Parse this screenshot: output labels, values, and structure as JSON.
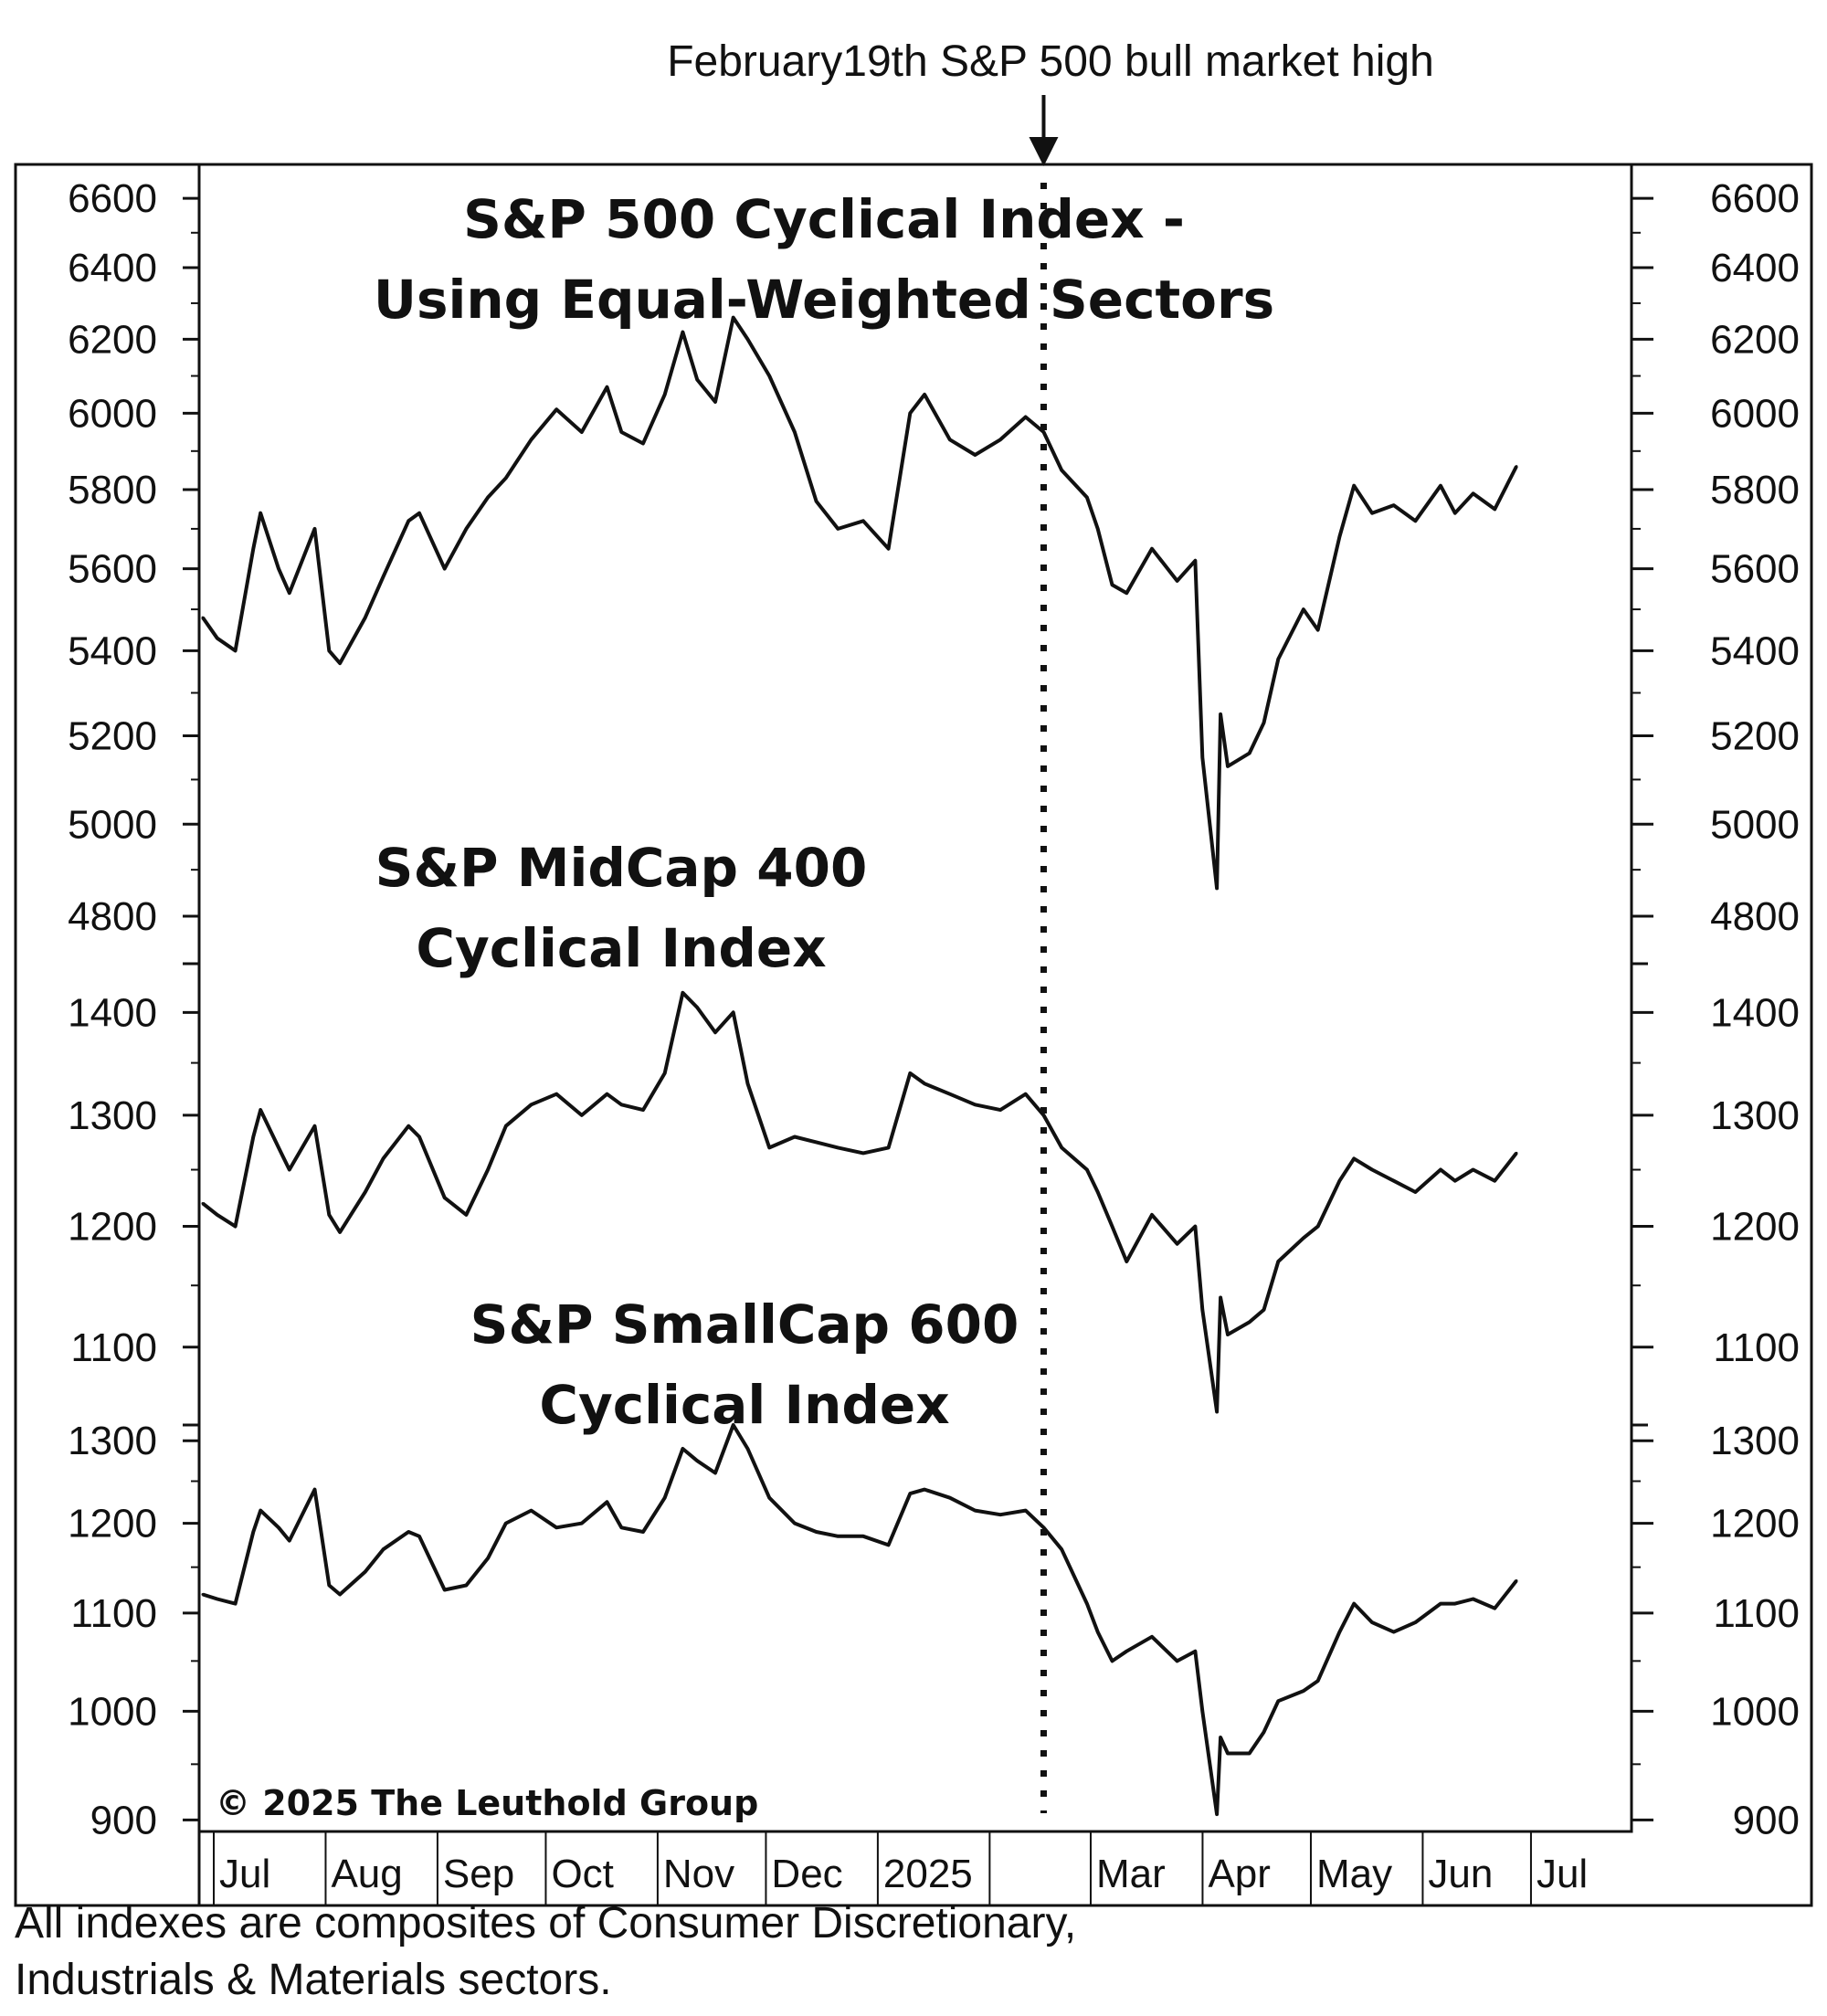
{
  "annotation": "February19th S&P 500 bull market high",
  "copyright": "© 2025 The Leuthold Group",
  "footnote": [
    "All indexes are composites of Consumer Discretionary,",
    "Industrials & Materials sectors."
  ],
  "month_labels": [
    "Jul",
    "Aug",
    "Sep",
    "Oct",
    "Nov",
    "Dec",
    "2025",
    "",
    "Mar",
    "Apr",
    "May",
    "Jun",
    "Jul"
  ],
  "chart_data": [
    {
      "type": "line",
      "title": "S&P 500 Cyclical Index - Using Equal-Weighted Sectors",
      "title_lines": [
        "S&P 500 Cyclical Index -",
        "Using Equal-Weighted Sectors"
      ],
      "yticks": [
        4800,
        5000,
        5200,
        5400,
        5600,
        5800,
        6000,
        6200,
        6400,
        6600
      ],
      "ylim": [
        4700,
        6700
      ],
      "scale": "log",
      "x_start": "2024-07-01",
      "x_end": "2025-06-30",
      "marker_date": "2025-02-19",
      "series": [
        {
          "x": [
            "2024-07-01",
            "2024-07-05",
            "2024-07-10",
            "2024-07-15",
            "2024-07-17",
            "2024-07-22",
            "2024-07-25",
            "2024-08-01",
            "2024-08-05",
            "2024-08-08",
            "2024-08-15",
            "2024-08-20",
            "2024-08-27",
            "2024-08-30",
            "2024-09-06",
            "2024-09-12",
            "2024-09-18",
            "2024-09-23",
            "2024-09-30",
            "2024-10-07",
            "2024-10-14",
            "2024-10-21",
            "2024-10-25",
            "2024-10-31",
            "2024-11-06",
            "2024-11-11",
            "2024-11-15",
            "2024-11-20",
            "2024-11-25",
            "2024-11-29",
            "2024-12-05",
            "2024-12-12",
            "2024-12-18",
            "2024-12-24",
            "2024-12-31",
            "2025-01-07",
            "2025-01-13",
            "2025-01-17",
            "2025-01-24",
            "2025-01-31",
            "2025-02-07",
            "2025-02-14",
            "2025-02-19",
            "2025-02-24",
            "2025-03-03",
            "2025-03-06",
            "2025-03-10",
            "2025-03-14",
            "2025-03-21",
            "2025-03-28",
            "2025-04-02",
            "2025-04-04",
            "2025-04-08",
            "2025-04-09",
            "2025-04-11",
            "2025-04-17",
            "2025-04-21",
            "2025-04-25",
            "2025-05-02",
            "2025-05-06",
            "2025-05-12",
            "2025-05-16",
            "2025-05-21",
            "2025-05-27",
            "2025-06-02",
            "2025-06-09",
            "2025-06-13",
            "2025-06-18",
            "2025-06-24",
            "2025-06-30"
          ],
          "y": [
            5480,
            5430,
            5400,
            5650,
            5740,
            5600,
            5540,
            5700,
            5400,
            5370,
            5480,
            5580,
            5720,
            5740,
            5600,
            5700,
            5780,
            5830,
            5930,
            6010,
            5950,
            6070,
            5950,
            5920,
            6050,
            6220,
            6090,
            6030,
            6260,
            6200,
            6100,
            5950,
            5770,
            5700,
            5720,
            5650,
            6000,
            6050,
            5930,
            5890,
            5930,
            5990,
            5950,
            5850,
            5780,
            5700,
            5560,
            5540,
            5650,
            5570,
            5620,
            5150,
            4860,
            5250,
            5130,
            5160,
            5230,
            5380,
            5500,
            5450,
            5680,
            5810,
            5740,
            5760,
            5720,
            5810,
            5740,
            5790,
            5750,
            5860
          ]
        }
      ]
    },
    {
      "type": "line",
      "title": "S&P MidCap 400 Cyclical Index",
      "title_lines": [
        "S&P MidCap 400",
        "Cyclical Index"
      ],
      "yticks": [
        1100,
        1200,
        1300,
        1400
      ],
      "ylim": [
        1040,
        1450
      ],
      "scale": "log",
      "x_start": "2024-07-01",
      "x_end": "2025-06-30",
      "marker_date": "2025-02-19",
      "series": [
        {
          "x": [
            "2024-07-01",
            "2024-07-05",
            "2024-07-10",
            "2024-07-15",
            "2024-07-17",
            "2024-07-22",
            "2024-07-25",
            "2024-08-01",
            "2024-08-05",
            "2024-08-08",
            "2024-08-15",
            "2024-08-20",
            "2024-08-27",
            "2024-08-30",
            "2024-09-06",
            "2024-09-12",
            "2024-09-18",
            "2024-09-23",
            "2024-09-30",
            "2024-10-07",
            "2024-10-14",
            "2024-10-21",
            "2024-10-25",
            "2024-10-31",
            "2024-11-06",
            "2024-11-11",
            "2024-11-15",
            "2024-11-20",
            "2024-11-25",
            "2024-11-29",
            "2024-12-05",
            "2024-12-12",
            "2024-12-18",
            "2024-12-24",
            "2024-12-31",
            "2025-01-07",
            "2025-01-13",
            "2025-01-17",
            "2025-01-24",
            "2025-01-31",
            "2025-02-07",
            "2025-02-14",
            "2025-02-19",
            "2025-02-24",
            "2025-03-03",
            "2025-03-06",
            "2025-03-10",
            "2025-03-14",
            "2025-03-21",
            "2025-03-28",
            "2025-04-02",
            "2025-04-04",
            "2025-04-08",
            "2025-04-09",
            "2025-04-11",
            "2025-04-17",
            "2025-04-21",
            "2025-04-25",
            "2025-05-02",
            "2025-05-06",
            "2025-05-12",
            "2025-05-16",
            "2025-05-21",
            "2025-05-27",
            "2025-06-02",
            "2025-06-09",
            "2025-06-13",
            "2025-06-18",
            "2025-06-24",
            "2025-06-30"
          ],
          "y": [
            1220,
            1210,
            1200,
            1280,
            1305,
            1270,
            1250,
            1290,
            1210,
            1195,
            1230,
            1260,
            1290,
            1280,
            1225,
            1210,
            1250,
            1290,
            1310,
            1320,
            1300,
            1320,
            1310,
            1305,
            1340,
            1420,
            1405,
            1380,
            1400,
            1330,
            1270,
            1280,
            1275,
            1270,
            1265,
            1270,
            1340,
            1330,
            1320,
            1310,
            1305,
            1320,
            1300,
            1270,
            1250,
            1230,
            1200,
            1170,
            1210,
            1185,
            1200,
            1130,
            1050,
            1140,
            1110,
            1120,
            1130,
            1170,
            1190,
            1200,
            1240,
            1260,
            1250,
            1240,
            1230,
            1250,
            1240,
            1250,
            1240,
            1265
          ]
        }
      ]
    },
    {
      "type": "line",
      "title": "S&P SmallCap 600 Cyclical Index",
      "title_lines": [
        "S&P SmallCap 600",
        "Cyclical Index"
      ],
      "yticks": [
        900,
        1000,
        1100,
        1200,
        1300
      ],
      "ylim": [
        890,
        1320
      ],
      "scale": "log",
      "x_start": "2024-07-01",
      "x_end": "2025-06-30",
      "marker_date": "2025-02-19",
      "series": [
        {
          "x": [
            "2024-07-01",
            "2024-07-05",
            "2024-07-10",
            "2024-07-15",
            "2024-07-17",
            "2024-07-22",
            "2024-07-25",
            "2024-08-01",
            "2024-08-05",
            "2024-08-08",
            "2024-08-15",
            "2024-08-20",
            "2024-08-27",
            "2024-08-30",
            "2024-09-06",
            "2024-09-12",
            "2024-09-18",
            "2024-09-23",
            "2024-09-30",
            "2024-10-07",
            "2024-10-14",
            "2024-10-21",
            "2024-10-25",
            "2024-10-31",
            "2024-11-06",
            "2024-11-11",
            "2024-11-15",
            "2024-11-20",
            "2024-11-25",
            "2024-11-29",
            "2024-12-05",
            "2024-12-12",
            "2024-12-18",
            "2024-12-24",
            "2024-12-31",
            "2025-01-07",
            "2025-01-13",
            "2025-01-17",
            "2025-01-24",
            "2025-01-31",
            "2025-02-07",
            "2025-02-14",
            "2025-02-19",
            "2025-02-24",
            "2025-03-03",
            "2025-03-06",
            "2025-03-10",
            "2025-03-14",
            "2025-03-21",
            "2025-03-28",
            "2025-04-02",
            "2025-04-04",
            "2025-04-08",
            "2025-04-09",
            "2025-04-11",
            "2025-04-17",
            "2025-04-21",
            "2025-04-25",
            "2025-05-02",
            "2025-05-06",
            "2025-05-12",
            "2025-05-16",
            "2025-05-21",
            "2025-05-27",
            "2025-06-02",
            "2025-06-09",
            "2025-06-13",
            "2025-06-18",
            "2025-06-24",
            "2025-06-30"
          ],
          "y": [
            1120,
            1115,
            1110,
            1190,
            1215,
            1195,
            1180,
            1240,
            1130,
            1120,
            1145,
            1170,
            1190,
            1185,
            1125,
            1130,
            1160,
            1200,
            1215,
            1195,
            1200,
            1225,
            1195,
            1190,
            1230,
            1290,
            1275,
            1260,
            1320,
            1290,
            1230,
            1200,
            1190,
            1185,
            1185,
            1175,
            1235,
            1240,
            1230,
            1215,
            1210,
            1215,
            1195,
            1170,
            1110,
            1080,
            1050,
            1060,
            1075,
            1050,
            1060,
            1000,
            905,
            975,
            960,
            960,
            980,
            1010,
            1020,
            1030,
            1080,
            1110,
            1090,
            1080,
            1090,
            1110,
            1110,
            1115,
            1105,
            1135
          ]
        }
      ]
    }
  ]
}
